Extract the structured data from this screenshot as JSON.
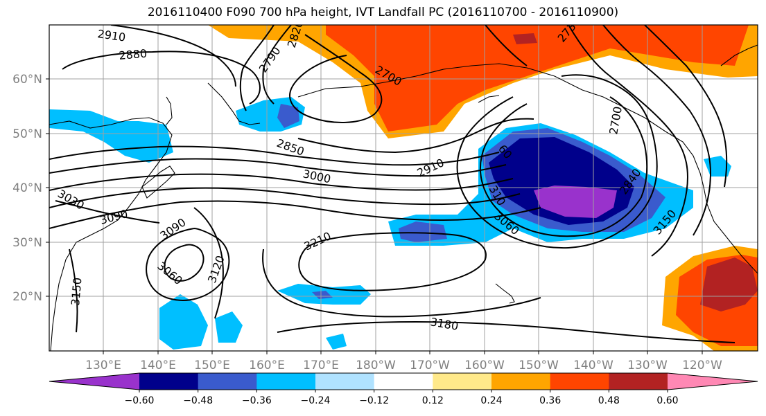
{
  "title": "2016110400 F090 700 hPa height, IVT Landfall PC (2016110700 - 2016110900)",
  "map": {
    "lon_labels": [
      "130°E",
      "140°E",
      "150°E",
      "160°E",
      "170°E",
      "180°W",
      "170°W",
      "160°W",
      "150°W",
      "140°W",
      "130°W",
      "120°W"
    ],
    "lat_labels": [
      "60°N",
      "50°N",
      "40°N",
      "30°N",
      "20°N"
    ],
    "contour_labels": [
      "2910",
      "2880",
      "2820",
      "2790",
      "2700",
      "2730",
      "2700",
      "2850",
      "3000",
      "2910",
      "3030",
      "3090",
      "3090",
      "3060",
      "3120",
      "3210",
      "3060",
      "3150",
      "3150",
      "3180",
      "60",
      "2840",
      "310"
    ]
  },
  "colorbar": {
    "ticks": [
      "−0.60",
      "−0.48",
      "−0.36",
      "−0.24",
      "−0.12",
      "0.12",
      "0.24",
      "0.36",
      "0.48",
      "0.60"
    ],
    "colors": [
      "#9932cc",
      "#00008b",
      "#3a5bcd",
      "#00bfff",
      "#b0e2ff",
      "#ffffff",
      "#ffe98a",
      "#ffa500",
      "#ff4500",
      "#b22222",
      "#ff88b4"
    ]
  }
}
